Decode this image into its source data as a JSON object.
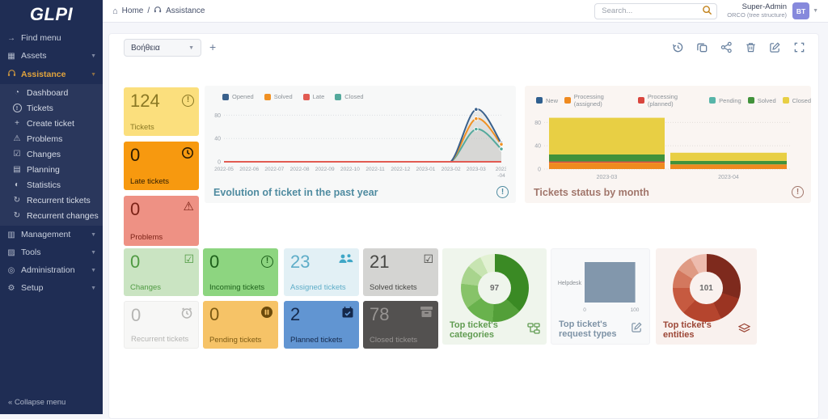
{
  "app": {
    "title": "GLPI"
  },
  "header": {
    "breadcrumb": {
      "home": "Home",
      "sep": "/",
      "section": "Assistance"
    },
    "search_placeholder": "Search...",
    "user_name": "Super-Admin",
    "user_entity": "ORCO (tree structure)",
    "avatar_initials": "BT"
  },
  "sidebar": {
    "logo": "GLPI",
    "find_menu": "Find menu",
    "assets": "Assets",
    "assistance": "Assistance",
    "assistance_items": [
      "Dashboard",
      "Tickets",
      "Create ticket",
      "Problems",
      "Changes",
      "Planning",
      "Statistics",
      "Recurrent tickets",
      "Recurrent changes"
    ],
    "bottom_sections": [
      "Management",
      "Tools",
      "Administration",
      "Setup"
    ],
    "collapse": "Collapse menu"
  },
  "toolbar": {
    "dashboard_select": "Βοήθεια",
    "icons": [
      "history-icon",
      "clone-icon",
      "share-icon",
      "trash-icon",
      "edit-icon",
      "maximize-icon"
    ]
  },
  "counters": [
    {
      "id": "tickets",
      "value": "124",
      "label": "Tickets",
      "bg": "#fbdf7d",
      "fg": "#8a7824",
      "icon": "exclamation-circle-icon"
    },
    {
      "id": "late",
      "value": "0",
      "label": "Late tickets",
      "bg": "#f7990f",
      "fg": "#2e1d02",
      "icon": "clock-icon"
    },
    {
      "id": "problems",
      "value": "0",
      "label": "Problems",
      "bg": "#ee9184",
      "fg": "#7c2317",
      "icon": "warning-triangle-icon"
    },
    {
      "id": "changes",
      "value": "0",
      "label": "Changes",
      "bg": "#cae4c2",
      "fg": "#4f9a42",
      "icon": "clipboard-check-icon"
    },
    {
      "id": "incoming",
      "value": "0",
      "label": "Incoming tickets",
      "bg": "#8dd580",
      "fg": "#1e611b",
      "icon": "exclamation-circle-icon"
    },
    {
      "id": "assigned",
      "value": "23",
      "label": "Assigned tickets",
      "bg": "#e2f0f5",
      "fg": "#5eadc8",
      "icon": "users-icon"
    },
    {
      "id": "solved",
      "value": "21",
      "label": "Solved tickets",
      "bg": "#d4d4d2",
      "fg": "#474744",
      "icon": "check-square-icon"
    },
    {
      "id": "recurrent",
      "value": "0",
      "label": "Recurrent tickets",
      "bg": "#f7f7f6",
      "fg": "#b5b5b3",
      "icon": "alarm-clock-icon"
    },
    {
      "id": "pending",
      "value": "0",
      "label": "Pending tickets",
      "bg": "#f6c367",
      "fg": "#7c5a13",
      "icon": "pause-circle-icon"
    },
    {
      "id": "planned",
      "value": "2",
      "label": "Planned tickets",
      "bg": "#6195d2",
      "fg": "#14284a",
      "icon": "calendar-check-icon"
    },
    {
      "id": "closed",
      "value": "78",
      "label": "Closed tickets",
      "bg": "#535150",
      "fg": "#979492",
      "icon": "archive-icon"
    }
  ],
  "chart_data": [
    {
      "type": "line",
      "title": "Evolution of ticket in the past year",
      "x": [
        "2022-05",
        "2022-06",
        "2022-07",
        "2022-08",
        "2022-09",
        "2022-10",
        "2022-11",
        "2022-12",
        "2023-01",
        "2023-02",
        "2023-03",
        "2023-04"
      ],
      "ylim": [
        0,
        100
      ],
      "yticks": [
        0,
        40,
        80
      ],
      "grid": true,
      "legend_position": "top",
      "series": [
        {
          "name": "Opened",
          "color": "#3a618c",
          "values": [
            0,
            0,
            0,
            0,
            0,
            0,
            0,
            0,
            0,
            0,
            90,
            32
          ]
        },
        {
          "name": "Solved",
          "color": "#f09124",
          "values": [
            0,
            0,
            0,
            0,
            0,
            0,
            0,
            0,
            0,
            0,
            74,
            30
          ]
        },
        {
          "name": "Late",
          "color": "#e25b52",
          "values": [
            0,
            0,
            0,
            0,
            0,
            0,
            0,
            0,
            0,
            0,
            0,
            0
          ]
        },
        {
          "name": "Closed",
          "color": "#54a99c",
          "values": [
            0,
            0,
            0,
            0,
            0,
            0,
            0,
            0,
            0,
            0,
            56,
            22
          ]
        }
      ]
    },
    {
      "type": "stacked-bar",
      "title": "Tickets status by month",
      "categories": [
        "2023-03",
        "2023-04"
      ],
      "ylim": [
        0,
        100
      ],
      "yticks": [
        0,
        40,
        80
      ],
      "grid": true,
      "legend_position": "top",
      "series": [
        {
          "name": "New",
          "color": "#2f5f8f",
          "values": [
            0,
            0
          ]
        },
        {
          "name": "Processing (assigned)",
          "color": "#ef8a1f",
          "values": [
            11,
            8
          ]
        },
        {
          "name": "Processing (planned)",
          "color": "#d9453d",
          "values": [
            2,
            0
          ]
        },
        {
          "name": "Pending",
          "color": "#57b5a9",
          "values": [
            0,
            0
          ]
        },
        {
          "name": "Solved",
          "color": "#41923b",
          "values": [
            12,
            6
          ]
        },
        {
          "name": "Closed",
          "color": "#e8cf44",
          "values": [
            63,
            14
          ]
        }
      ]
    },
    {
      "type": "donut",
      "title": "Top ticket's categories",
      "total": "97",
      "slices": [
        {
          "value": 37,
          "color": "#3a8a24"
        },
        {
          "value": 14,
          "color": "#539f39"
        },
        {
          "value": 14,
          "color": "#69b24d"
        },
        {
          "value": 12,
          "color": "#87c369"
        },
        {
          "value": 9,
          "color": "#a8d48d"
        },
        {
          "value": 7,
          "color": "#c7e4b1"
        },
        {
          "value": 7,
          "color": "#e2f1d3"
        }
      ]
    },
    {
      "type": "hbar",
      "title": "Top ticket's request types",
      "categories": [
        "Helpdesk"
      ],
      "values": [
        101
      ],
      "xticks": [
        0,
        100
      ],
      "color": "#8297ac"
    },
    {
      "type": "donut",
      "title": "Top ticket's entities",
      "total": "101",
      "slices": [
        {
          "value": 30,
          "color": "#7e2a1d"
        },
        {
          "value": 13,
          "color": "#9b3422"
        },
        {
          "value": 19,
          "color": "#b5452e"
        },
        {
          "value": 13,
          "color": "#c65a40"
        },
        {
          "value": 9,
          "color": "#d3785e"
        },
        {
          "value": 8,
          "color": "#df9a83"
        },
        {
          "value": 8,
          "color": "#edbcae"
        }
      ]
    }
  ],
  "colors": {
    "sidebar_bg": "#1f2d54",
    "sidebar_active": "#e2a43d",
    "panel_bg": "#ffffff",
    "page_bg": "#f5f6fa",
    "avatar_bg": "#8689dc",
    "search_icon": "#c07f16"
  }
}
